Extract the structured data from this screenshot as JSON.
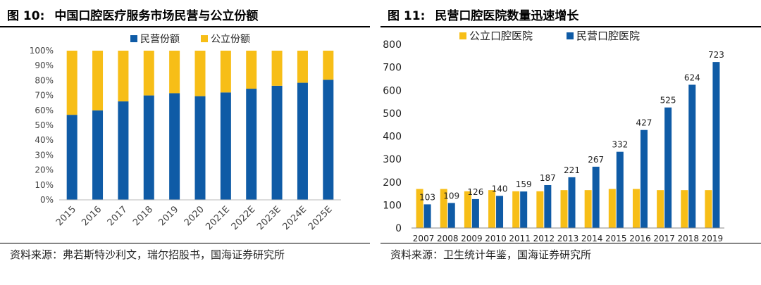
{
  "left": {
    "fig_number": "图 10:",
    "title": "中国口腔医疗服务市场民营与公立份额",
    "source": "资料来源：弗若斯特沙利文，瑞尔招股书，国海证券研究所",
    "chart_data": {
      "type": "bar",
      "stacked": true,
      "categories": [
        "2015",
        "2016",
        "2017",
        "2018",
        "2019",
        "2020",
        "2021E",
        "2022E",
        "2023E",
        "2024E",
        "2025E"
      ],
      "series": [
        {
          "name": "民营份额",
          "color": "#0f5ba6",
          "values": [
            57,
            60,
            66,
            70,
            71.5,
            69.5,
            72,
            74.5,
            76.5,
            78.5,
            80.5
          ]
        },
        {
          "name": "公立份额",
          "color": "#f7be17",
          "values": [
            43,
            40,
            34,
            30,
            28.5,
            30.5,
            28,
            25.5,
            23.5,
            21.5,
            19.5
          ]
        }
      ],
      "ylim": [
        0,
        100
      ],
      "yticks": [
        "0%",
        "10%",
        "20%",
        "30%",
        "40%",
        "50%",
        "60%",
        "70%",
        "80%",
        "90%",
        "100%"
      ],
      "legend": "top-center",
      "grid": false
    }
  },
  "right": {
    "fig_number": "图 11:",
    "title": "民营口腔医院数量迅速增长",
    "source": "资料来源：卫生统计年鉴，国海证券研究所",
    "chart_data": {
      "type": "bar",
      "categories": [
        "2007",
        "2008",
        "2009",
        "2010",
        "2011",
        "2012",
        "2013",
        "2014",
        "2015",
        "2016",
        "2017",
        "2018",
        "2019"
      ],
      "series": [
        {
          "name": "公立口腔医院",
          "color": "#f7be17",
          "values": [
            170,
            170,
            160,
            165,
            160,
            160,
            165,
            165,
            170,
            170,
            165,
            165,
            165
          ]
        },
        {
          "name": "民营口腔医院",
          "color": "#0f5ba6",
          "values": [
            103,
            109,
            126,
            140,
            159,
            187,
            221,
            267,
            332,
            427,
            525,
            624,
            723
          ]
        }
      ],
      "data_labels_series": "民营口腔医院",
      "ylim": [
        0,
        800
      ],
      "yticks": [
        "0",
        "100",
        "200",
        "300",
        "400",
        "500",
        "600",
        "700",
        "800"
      ],
      "legend": "top-left",
      "grid": false
    }
  }
}
